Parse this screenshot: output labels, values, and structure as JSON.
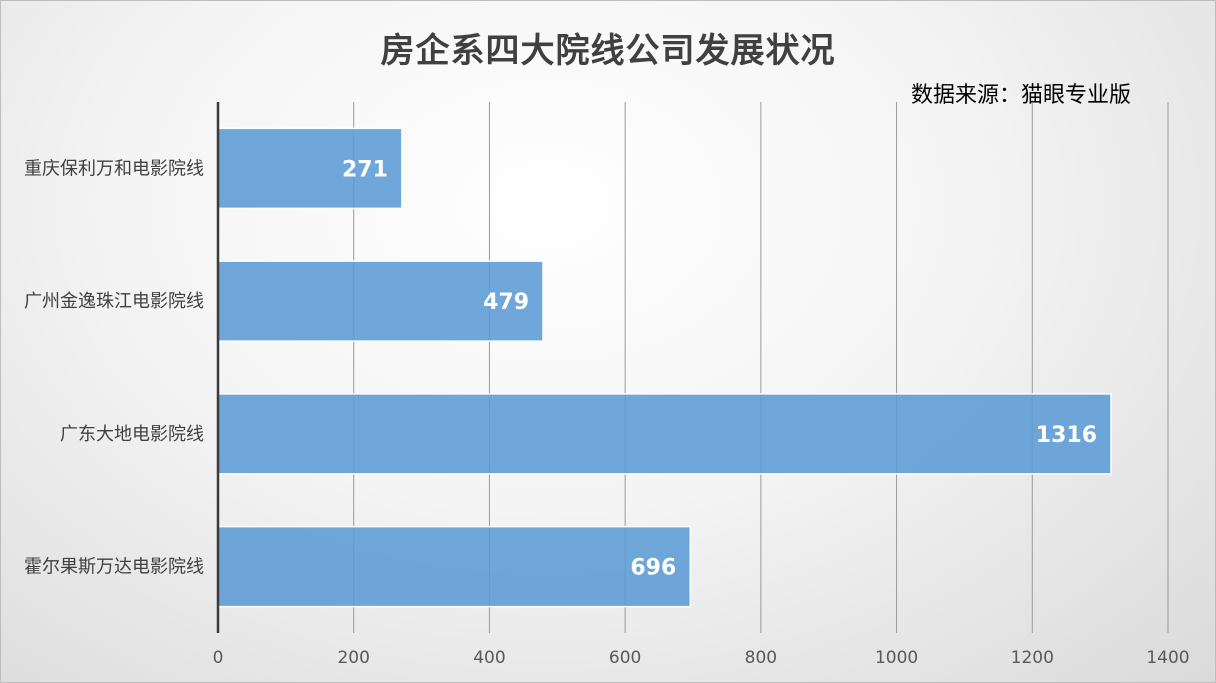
{
  "chart_data": {
    "type": "bar",
    "orientation": "horizontal",
    "title": "房企系四大院线公司发展状况",
    "source": "数据来源：猫眼专业版",
    "categories": [
      "重庆保利万和电影院线",
      "广州金逸珠江电影院线",
      "广东大地电影院线",
      "霍尔果斯万达电影院线"
    ],
    "values": [
      271,
      479,
      1316,
      696
    ],
    "xlim": [
      0,
      1400
    ],
    "xticks": [
      "0",
      "200",
      "400",
      "600",
      "800",
      "1000",
      "1200",
      "1400"
    ],
    "grid": true,
    "legend": "none",
    "bar_color": "#5b9bd5"
  }
}
